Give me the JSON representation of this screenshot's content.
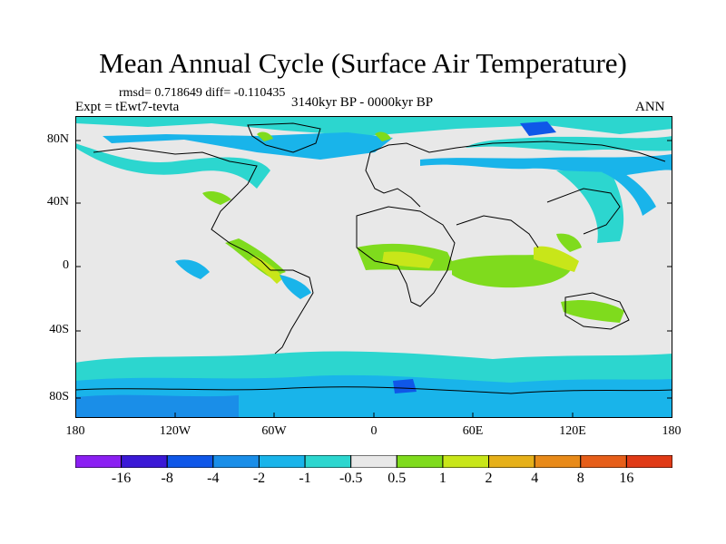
{
  "title": "Mean Annual Cycle (Surface Air Temperature)",
  "stats": "rmsd= 0.718649 diff= -0.110435",
  "experiment": "Expt = tEwt7-tevta",
  "period": "3140kyr BP - 0000kyr BP",
  "season": "ANN",
  "lat_labels": [
    "80N",
    "40N",
    "0",
    "40S",
    "80S"
  ],
  "lon_labels": [
    "180",
    "120W",
    "60W",
    "0",
    "60E",
    "120E",
    "180"
  ],
  "colorbar": {
    "labels": [
      "-16",
      "-8",
      "-4",
      "-2",
      "-1",
      "-0.5",
      "0.5",
      "1",
      "2",
      "4",
      "8",
      "16"
    ],
    "colors": [
      "#8b1ff2",
      "#3b19d6",
      "#0f57e8",
      "#1a8ee8",
      "#19b4ea",
      "#2cd6cf",
      "#e8e8e8",
      "#7fdb1d",
      "#c8e619",
      "#e6b019",
      "#e88a19",
      "#e65e19",
      "#e03a16"
    ]
  }
}
